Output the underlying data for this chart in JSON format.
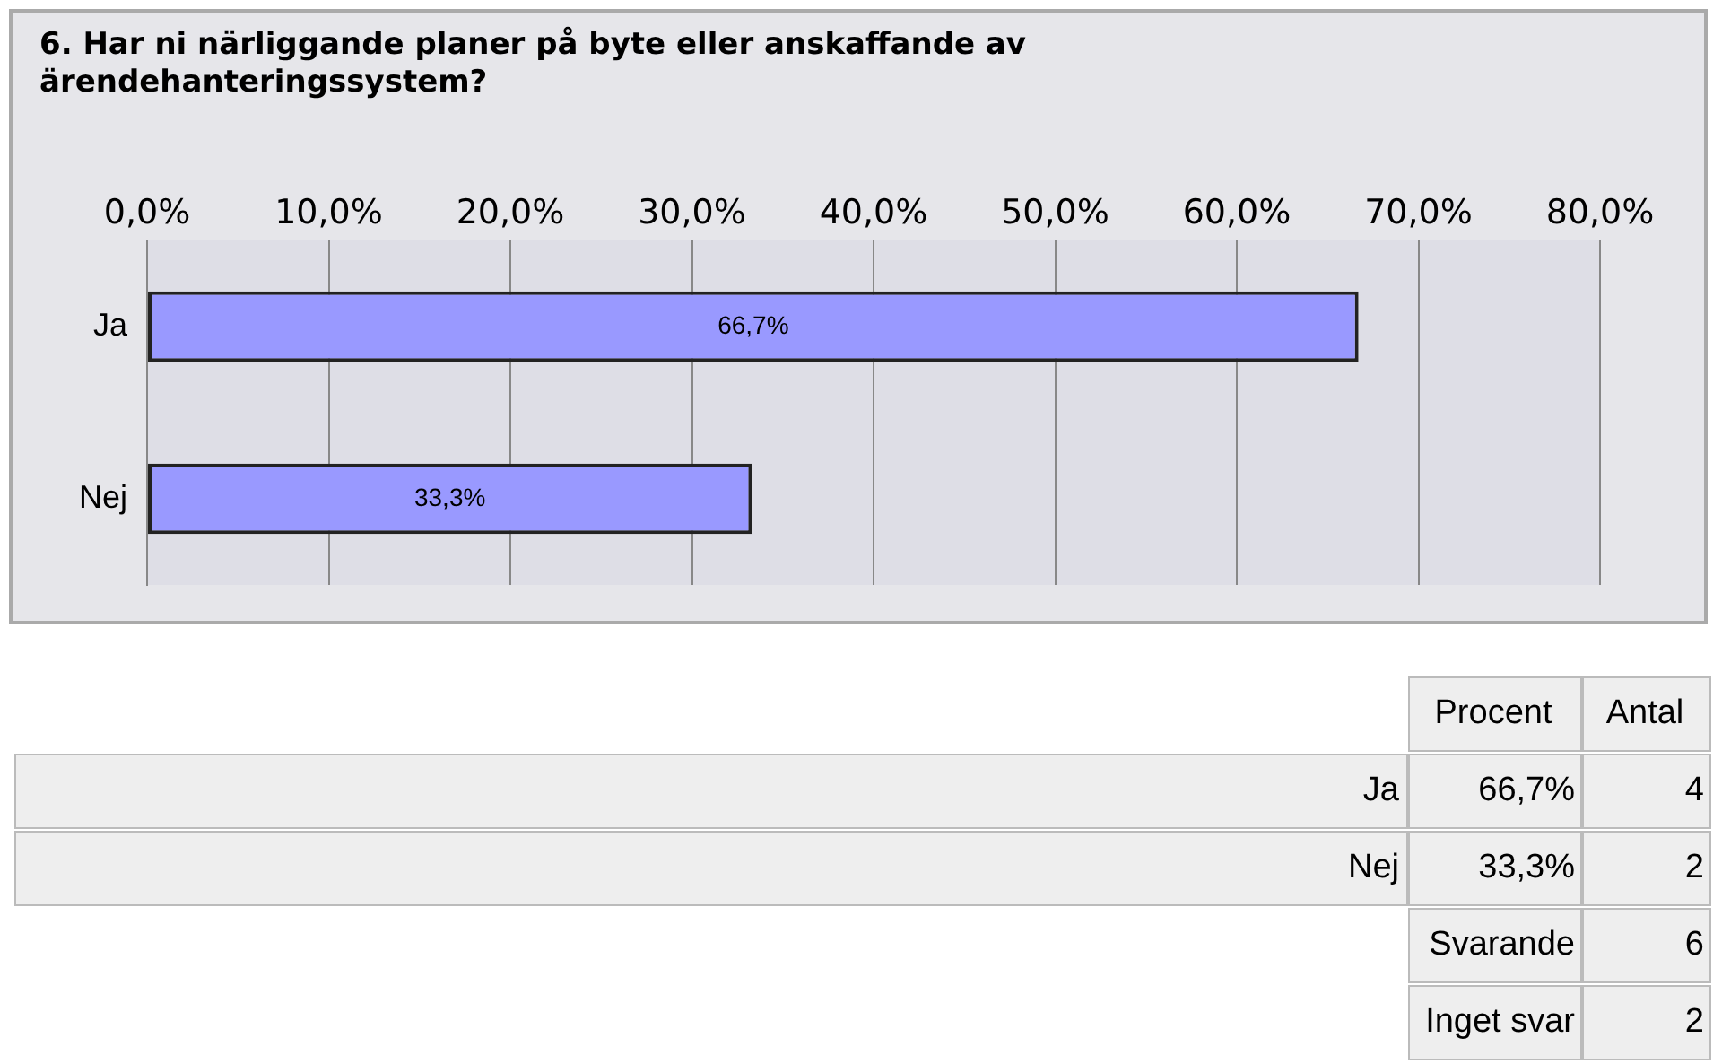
{
  "chart_data": {
    "type": "bar",
    "orientation": "horizontal",
    "title": "6. Har ni närliggande planer på byte eller anskaffande av ärendehanteringssystem?",
    "categories": [
      "Ja",
      "Nej"
    ],
    "values": [
      66.7,
      33.3
    ],
    "color": "#9999ff",
    "value_labels": [
      "66,7%",
      "33,3%"
    ],
    "xlim": [
      0,
      80
    ],
    "xticks": [
      {
        "value": 0,
        "label": "0,0%"
      },
      {
        "value": 10,
        "label": "10,0%"
      },
      {
        "value": 20,
        "label": "20,0%"
      },
      {
        "value": 30,
        "label": "30,0%"
      },
      {
        "value": 40,
        "label": "40,0%"
      },
      {
        "value": 50,
        "label": "50,0%"
      },
      {
        "value": 60,
        "label": "60,0%"
      },
      {
        "value": 70,
        "label": "70,0%"
      },
      {
        "value": 80,
        "label": "80,0%"
      }
    ],
    "grid": "x",
    "legend": false,
    "annotations": [
      "Procent",
      "Antal",
      "4",
      "2",
      "Svarande",
      "6",
      "Inget svar",
      "2"
    ]
  }
}
